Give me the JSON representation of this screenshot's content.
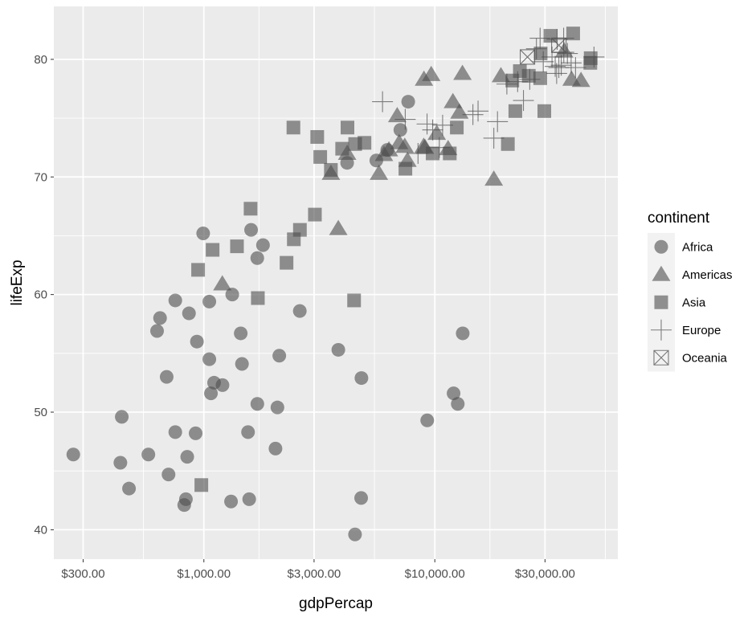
{
  "chart_data": {
    "type": "scatter",
    "title": "",
    "xlabel": "gdpPercap",
    "ylabel": "lifeExp",
    "x_scale": "log10",
    "xlim": [
      224,
      62000
    ],
    "ylim": [
      37.5,
      84.5
    ],
    "x_ticks": [
      300,
      1000,
      3000,
      10000,
      30000
    ],
    "x_tick_labels": [
      "$300.00",
      "$1,000.00",
      "$3,000.00",
      "$10,000.00",
      "$30,000.00"
    ],
    "x_minor_ticks": [
      547.7,
      1732,
      5477,
      17320,
      54770
    ],
    "y_ticks": [
      40,
      50,
      60,
      70,
      80
    ],
    "y_tick_labels": [
      "40",
      "50",
      "60",
      "70",
      "80"
    ],
    "y_minor_ticks": [
      45,
      55,
      65,
      75
    ],
    "grid": true,
    "legend": {
      "title": "continent",
      "position": "right"
    },
    "colors": {
      "panel": "#ebebeb",
      "grid": "#ffffff",
      "point": "#4d4d4d"
    },
    "series": [
      {
        "name": "Africa",
        "shape": "circle",
        "points": [
          [
            272,
            46.4
          ],
          [
            435,
            45.7
          ],
          [
            441,
            49.6
          ],
          [
            474,
            43.5
          ],
          [
            575,
            46.4
          ],
          [
            627,
            56.9
          ],
          [
            646,
            58.0
          ],
          [
            690,
            53.0
          ],
          [
            703,
            44.7
          ],
          [
            752,
            59.5
          ],
          [
            752,
            48.3
          ],
          [
            822,
            42.1
          ],
          [
            836,
            42.6
          ],
          [
            847,
            46.2
          ],
          [
            862,
            58.4
          ],
          [
            921,
            48.2
          ],
          [
            933,
            56.0
          ],
          [
            993,
            65.2
          ],
          [
            1056,
            54.5
          ],
          [
            1056,
            59.4
          ],
          [
            1073,
            51.6
          ],
          [
            1107,
            52.5
          ],
          [
            1204,
            52.3
          ],
          [
            1311,
            42.4
          ],
          [
            1327,
            60.0
          ],
          [
            1444,
            56.7
          ],
          [
            1462,
            54.1
          ],
          [
            1553,
            48.3
          ],
          [
            1571,
            42.6
          ],
          [
            1601,
            65.5
          ],
          [
            1703,
            63.1
          ],
          [
            1704,
            50.7
          ],
          [
            1803,
            64.2
          ],
          [
            2042,
            46.9
          ],
          [
            2082,
            50.4
          ],
          [
            2121,
            54.8
          ],
          [
            2602,
            58.6
          ],
          [
            3821,
            55.3
          ],
          [
            4172,
            71.2
          ],
          [
            4513,
            39.6
          ],
          [
            4797,
            42.7
          ],
          [
            4811,
            52.9
          ],
          [
            5581,
            71.4
          ],
          [
            6223,
            72.3
          ],
          [
            7092,
            74.0
          ],
          [
            7670,
            76.4
          ],
          [
            9270,
            49.3
          ],
          [
            12057,
            51.6
          ],
          [
            12570,
            50.7
          ],
          [
            13206,
            56.7
          ]
        ]
      },
      {
        "name": "Americas",
        "shape": "triangle",
        "points": [
          [
            1202,
            60.9
          ],
          [
            3549,
            70.3
          ],
          [
            3820,
            65.6
          ],
          [
            4173,
            72.0
          ],
          [
            5728,
            70.3
          ],
          [
            6025,
            71.9
          ],
          [
            6328,
            72.3
          ],
          [
            6873,
            75.2
          ],
          [
            7009,
            72.9
          ],
          [
            7409,
            72.6
          ],
          [
            7613,
            71.4
          ],
          [
            8948,
            72.6
          ],
          [
            8974,
            78.3
          ],
          [
            9066,
            72.5
          ],
          [
            9645,
            78.7
          ],
          [
            10197,
            73.7
          ],
          [
            11416,
            72.4
          ],
          [
            11978,
            76.4
          ],
          [
            12779,
            75.5
          ],
          [
            13172,
            78.8
          ],
          [
            18009,
            69.8
          ],
          [
            19329,
            78.6
          ],
          [
            36319,
            80.7
          ],
          [
            39097,
            78.3
          ],
          [
            42952,
            78.2
          ]
        ]
      },
      {
        "name": "Asia",
        "shape": "square",
        "points": [
          [
            944,
            62.1
          ],
          [
            975,
            43.8
          ],
          [
            1091,
            63.8
          ],
          [
            1391,
            64.1
          ],
          [
            1593,
            67.3
          ],
          [
            1713,
            59.7
          ],
          [
            2280,
            62.7
          ],
          [
            2452,
            64.7
          ],
          [
            2605,
            65.5
          ],
          [
            2442,
            74.2
          ],
          [
            3025,
            66.8
          ],
          [
            3096,
            73.4
          ],
          [
            3190,
            71.7
          ],
          [
            3548,
            70.6
          ],
          [
            3970,
            72.4
          ],
          [
            4186,
            74.2
          ],
          [
            4471,
            59.5
          ],
          [
            4519,
            72.8
          ],
          [
            4959,
            72.9
          ],
          [
            7458,
            70.7
          ],
          [
            9786,
            72.0
          ],
          [
            11606,
            72.0
          ],
          [
            12452,
            74.2
          ],
          [
            20715,
            72.8
          ],
          [
            22316,
            75.6
          ],
          [
            23348,
            79.0
          ],
          [
            25523,
            78.6
          ],
          [
            28718,
            80.5
          ],
          [
            28605,
            78.4
          ],
          [
            31656,
            82.0
          ],
          [
            39725,
            82.2
          ],
          [
            47143,
            79.7
          ],
          [
            47307,
            80.1
          ],
          [
            29796,
            75.6
          ],
          [
            21655,
            78.2
          ]
        ]
      },
      {
        "name": "Europe",
        "shape": "cross",
        "points": [
          [
            5937,
            76.4
          ],
          [
            7446,
            74.9
          ],
          [
            8458,
            72.0
          ],
          [
            9254,
            74.5
          ],
          [
            9787,
            74.0
          ],
          [
            10461,
            72.5
          ],
          [
            10808,
            74.4
          ],
          [
            14619,
            75.3
          ],
          [
            15390,
            75.6
          ],
          [
            18009,
            73.3
          ],
          [
            18678,
            74.7
          ],
          [
            20510,
            77.9
          ],
          [
            22834,
            78.1
          ],
          [
            25768,
            78.3
          ],
          [
            27539,
            80.9
          ],
          [
            28570,
            81.8
          ],
          [
            29479,
            79.8
          ],
          [
            32170,
            80.2
          ],
          [
            33208,
            79.4
          ],
          [
            33693,
            78.8
          ],
          [
            34435,
            79.3
          ],
          [
            35278,
            79.5
          ],
          [
            36126,
            81.8
          ],
          [
            36181,
            80.6
          ],
          [
            37506,
            80.5
          ],
          [
            38930,
            79.7
          ],
          [
            40676,
            79.3
          ],
          [
            48889,
            80.2
          ],
          [
            24200,
            76.5
          ],
          [
            33860,
            81.7
          ]
        ]
      },
      {
        "name": "Oceania",
        "shape": "crossbox",
        "points": [
          [
            25185,
            80.2
          ],
          [
            34435,
            81.2
          ]
        ]
      }
    ]
  }
}
